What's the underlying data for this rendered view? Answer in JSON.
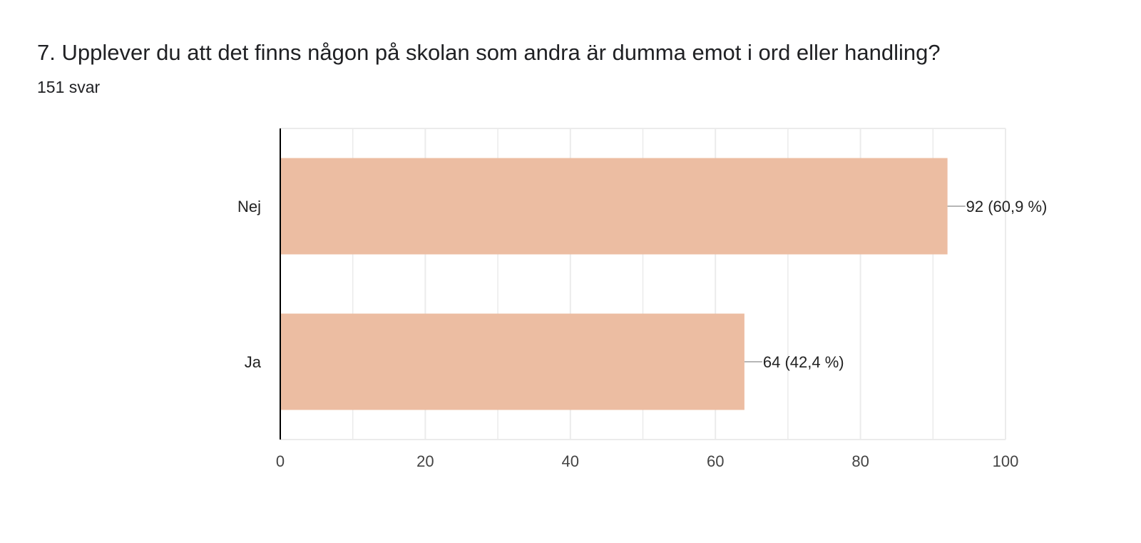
{
  "question": {
    "title": "7. Upplever du att det finns någon på skolan som andra är dumma emot i ord eller handling?",
    "response_count": "151 svar"
  },
  "colors": {
    "bar": "#ecbda2",
    "grid": "#ebebeb",
    "axis": "#000000",
    "leader": "#9e9e9e"
  },
  "chart_data": {
    "type": "bar",
    "orientation": "horizontal",
    "categories": [
      "Nej",
      "Ja"
    ],
    "values": [
      92,
      64
    ],
    "data_labels": [
      "92 (60,9 %)",
      "64 (42,4 %)"
    ],
    "xlim": [
      0,
      100
    ],
    "x_ticks": [
      0,
      20,
      40,
      60,
      80,
      100
    ],
    "x_tick_labels": [
      "0",
      "20",
      "40",
      "60",
      "80",
      "100"
    ],
    "minor_gridlines": [
      10,
      30,
      50,
      70,
      90
    ],
    "grid": true,
    "legend": "none"
  }
}
